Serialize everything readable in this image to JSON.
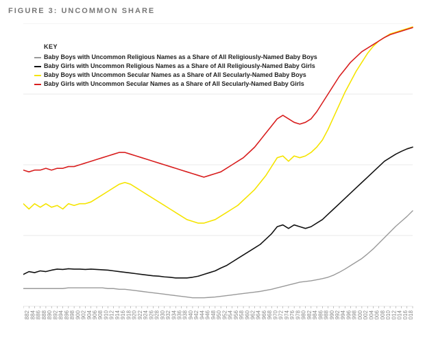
{
  "title": "FIGURE 3: UNCOMMON SHARE",
  "chart": {
    "type": "line",
    "background_color": "#ffffff",
    "grid_color": "#e8e8e8",
    "axis_color": "#888888",
    "tick_label_fontsize": 8,
    "title_color": "#777777",
    "title_fontsize": 11,
    "xlim": [
      1880,
      2018
    ],
    "ylim": [
      0,
      80
    ],
    "ytick_step": 20,
    "ytick_suffix": "%",
    "xtick_step": 2,
    "x_values": [
      1880,
      1882,
      1884,
      1886,
      1888,
      1890,
      1892,
      1894,
      1896,
      1898,
      1900,
      1902,
      1904,
      1906,
      1908,
      1910,
      1912,
      1914,
      1916,
      1918,
      1920,
      1922,
      1924,
      1926,
      1928,
      1930,
      1932,
      1934,
      1936,
      1938,
      1940,
      1942,
      1944,
      1946,
      1948,
      1950,
      1952,
      1954,
      1956,
      1958,
      1960,
      1962,
      1964,
      1966,
      1968,
      1970,
      1972,
      1974,
      1976,
      1978,
      1980,
      1982,
      1984,
      1986,
      1988,
      1990,
      1992,
      1994,
      1996,
      1998,
      2000,
      2002,
      2004,
      2006,
      2008,
      2010,
      2012,
      2014,
      2016,
      2018
    ],
    "legend": {
      "title": "KEY",
      "position": "upper-left"
    },
    "series": [
      {
        "id": "boys_religious",
        "label": "Baby Boys with Uncommon Religious Names as a Share of All Religiously-Named Baby Boys",
        "color": "#999999",
        "line_width": 1.4,
        "values": [
          5.0,
          5.0,
          5.0,
          5.0,
          5.0,
          5.0,
          5.0,
          5.0,
          5.2,
          5.2,
          5.2,
          5.2,
          5.2,
          5.2,
          5.2,
          5.0,
          5.0,
          4.8,
          4.8,
          4.6,
          4.4,
          4.2,
          4.0,
          3.8,
          3.6,
          3.4,
          3.2,
          3.0,
          2.8,
          2.6,
          2.4,
          2.4,
          2.4,
          2.5,
          2.6,
          2.8,
          3.0,
          3.2,
          3.4,
          3.6,
          3.8,
          4.0,
          4.2,
          4.5,
          4.8,
          5.2,
          5.6,
          6.0,
          6.4,
          6.8,
          7.0,
          7.2,
          7.5,
          7.8,
          8.2,
          8.8,
          9.6,
          10.5,
          11.5,
          12.5,
          13.5,
          14.8,
          16.2,
          17.8,
          19.4,
          21.0,
          22.6,
          24.0,
          25.4,
          27.0
        ]
      },
      {
        "id": "girls_religious",
        "label": "Baby Girls with Uncommon Religious Names as a Share of All Religiously-Named Baby Girls",
        "color": "#111111",
        "line_width": 1.6,
        "values": [
          9.0,
          9.8,
          9.5,
          10.0,
          9.8,
          10.2,
          10.5,
          10.4,
          10.6,
          10.5,
          10.5,
          10.4,
          10.5,
          10.4,
          10.3,
          10.2,
          10.0,
          9.8,
          9.6,
          9.4,
          9.2,
          9.0,
          8.8,
          8.6,
          8.5,
          8.3,
          8.2,
          8.0,
          8.0,
          8.0,
          8.2,
          8.5,
          9.0,
          9.5,
          10.0,
          10.8,
          11.5,
          12.5,
          13.5,
          14.5,
          15.5,
          16.5,
          17.5,
          19.0,
          20.5,
          22.5,
          23.0,
          22.0,
          23.0,
          22.5,
          22.0,
          22.5,
          23.5,
          24.5,
          26.0,
          27.5,
          29.0,
          30.5,
          32.0,
          33.5,
          35.0,
          36.5,
          38.0,
          39.5,
          41.0,
          42.0,
          43.0,
          43.8,
          44.5,
          45.0
        ]
      },
      {
        "id": "boys_secular",
        "label": "Baby Boys with Uncommon Secular Names as a Share of All Secularly-Named Baby Boys",
        "color": "#f5e400",
        "line_width": 1.6,
        "values": [
          29.0,
          27.5,
          29.0,
          28.0,
          29.0,
          28.0,
          28.5,
          27.5,
          29.0,
          28.5,
          29.0,
          29.0,
          29.5,
          30.5,
          31.5,
          32.5,
          33.5,
          34.5,
          35.0,
          34.5,
          33.5,
          32.5,
          31.5,
          30.5,
          29.5,
          28.5,
          27.5,
          26.5,
          25.5,
          24.5,
          24.0,
          23.5,
          23.5,
          24.0,
          24.5,
          25.5,
          26.5,
          27.5,
          28.5,
          30.0,
          31.5,
          33.0,
          35.0,
          37.0,
          39.5,
          42.0,
          42.5,
          41.0,
          42.5,
          42.0,
          42.5,
          43.5,
          45.0,
          47.0,
          50.0,
          53.5,
          57.0,
          60.5,
          63.5,
          66.5,
          69.0,
          71.5,
          73.5,
          75.0,
          76.0,
          77.0,
          77.5,
          78.0,
          78.5,
          79.0
        ]
      },
      {
        "id": "girls_secular",
        "label": "Baby Girls with Uncommon Secular Names as a Share of All Secularly-Named Baby Girls",
        "color": "#d81e1e",
        "line_width": 1.6,
        "values": [
          38.5,
          38.0,
          38.5,
          38.5,
          39.0,
          38.5,
          39.0,
          39.0,
          39.5,
          39.5,
          40.0,
          40.5,
          41.0,
          41.5,
          42.0,
          42.5,
          43.0,
          43.5,
          43.5,
          43.0,
          42.5,
          42.0,
          41.5,
          41.0,
          40.5,
          40.0,
          39.5,
          39.0,
          38.5,
          38.0,
          37.5,
          37.0,
          36.5,
          37.0,
          37.5,
          38.0,
          39.0,
          40.0,
          41.0,
          42.0,
          43.5,
          45.0,
          47.0,
          49.0,
          51.0,
          53.0,
          54.0,
          53.0,
          52.0,
          51.5,
          52.0,
          53.0,
          55.0,
          57.5,
          60.0,
          62.5,
          65.0,
          67.0,
          69.0,
          70.5,
          72.0,
          73.0,
          74.0,
          75.0,
          76.0,
          76.8,
          77.3,
          77.8,
          78.3,
          78.8
        ]
      }
    ]
  }
}
